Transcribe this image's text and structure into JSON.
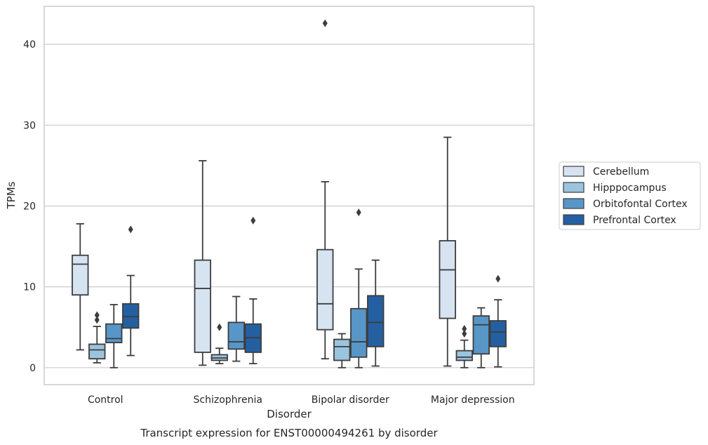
{
  "caption": "Transcript expression for ENST00000494261 by disorder",
  "chart_data": {
    "type": "box",
    "title": "",
    "xlabel": "Disorder",
    "ylabel": "TPMs",
    "ylim": [
      -2.1,
      44.7
    ],
    "yticks": [
      0,
      10,
      20,
      30,
      40
    ],
    "grid": "horizontal",
    "legend_position": "right",
    "categories": [
      "Control",
      "Schizophrenia",
      "Bipolar disorder",
      "Major depression"
    ],
    "series": [
      {
        "name": "Cerebellum",
        "color": "#d6e4f2",
        "boxes": [
          {
            "whisker_low": 2.2,
            "q1": 9.0,
            "median": 12.8,
            "q3": 13.9,
            "whisker_high": 17.8,
            "outliers": []
          },
          {
            "whisker_low": 0.3,
            "q1": 1.9,
            "median": 9.8,
            "q3": 13.3,
            "whisker_high": 25.6,
            "outliers": []
          },
          {
            "whisker_low": 1.1,
            "q1": 4.7,
            "median": 7.9,
            "q3": 14.6,
            "whisker_high": 23.0,
            "outliers": [
              42.6
            ]
          },
          {
            "whisker_low": 0.2,
            "q1": 6.1,
            "median": 12.1,
            "q3": 15.7,
            "whisker_high": 28.5,
            "outliers": []
          }
        ]
      },
      {
        "name": "Hipppocampus",
        "color": "#9bc4de",
        "boxes": [
          {
            "whisker_low": 0.6,
            "q1": 1.1,
            "median": 2.2,
            "q3": 2.9,
            "whisker_high": 5.1,
            "outliers": [
              5.9,
              6.5
            ]
          },
          {
            "whisker_low": 0.5,
            "q1": 0.9,
            "median": 1.2,
            "q3": 1.6,
            "whisker_high": 2.4,
            "outliers": [
              5.0
            ]
          },
          {
            "whisker_low": 0.0,
            "q1": 0.9,
            "median": 2.6,
            "q3": 3.5,
            "whisker_high": 4.2,
            "outliers": []
          },
          {
            "whisker_low": 0.0,
            "q1": 0.9,
            "median": 1.3,
            "q3": 2.1,
            "whisker_high": 3.4,
            "outliers": [
              4.2,
              4.8
            ]
          }
        ]
      },
      {
        "name": "Orbitofontal Cortex",
        "color": "#5896c7",
        "boxes": [
          {
            "whisker_low": 0.0,
            "q1": 3.1,
            "median": 3.6,
            "q3": 5.4,
            "whisker_high": 7.8,
            "outliers": []
          },
          {
            "whisker_low": 0.8,
            "q1": 2.3,
            "median": 3.2,
            "q3": 5.6,
            "whisker_high": 8.8,
            "outliers": []
          },
          {
            "whisker_low": 0.0,
            "q1": 1.3,
            "median": 3.2,
            "q3": 7.3,
            "whisker_high": 12.2,
            "outliers": [
              19.2
            ]
          },
          {
            "whisker_low": 0.0,
            "q1": 1.7,
            "median": 5.3,
            "q3": 6.4,
            "whisker_high": 7.4,
            "outliers": []
          }
        ]
      },
      {
        "name": "Prefrontal Cortex",
        "color": "#2460a1",
        "boxes": [
          {
            "whisker_low": 1.5,
            "q1": 4.9,
            "median": 6.3,
            "q3": 7.9,
            "whisker_high": 11.4,
            "outliers": [
              17.1
            ]
          },
          {
            "whisker_low": 0.5,
            "q1": 1.9,
            "median": 3.7,
            "q3": 5.4,
            "whisker_high": 8.5,
            "outliers": [
              18.2
            ]
          },
          {
            "whisker_low": 0.2,
            "q1": 2.6,
            "median": 5.6,
            "q3": 8.9,
            "whisker_high": 13.3,
            "outliers": []
          },
          {
            "whisker_low": 0.1,
            "q1": 2.6,
            "median": 4.4,
            "q3": 5.8,
            "whisker_high": 8.4,
            "outliers": [
              11.0
            ]
          }
        ]
      }
    ]
  }
}
